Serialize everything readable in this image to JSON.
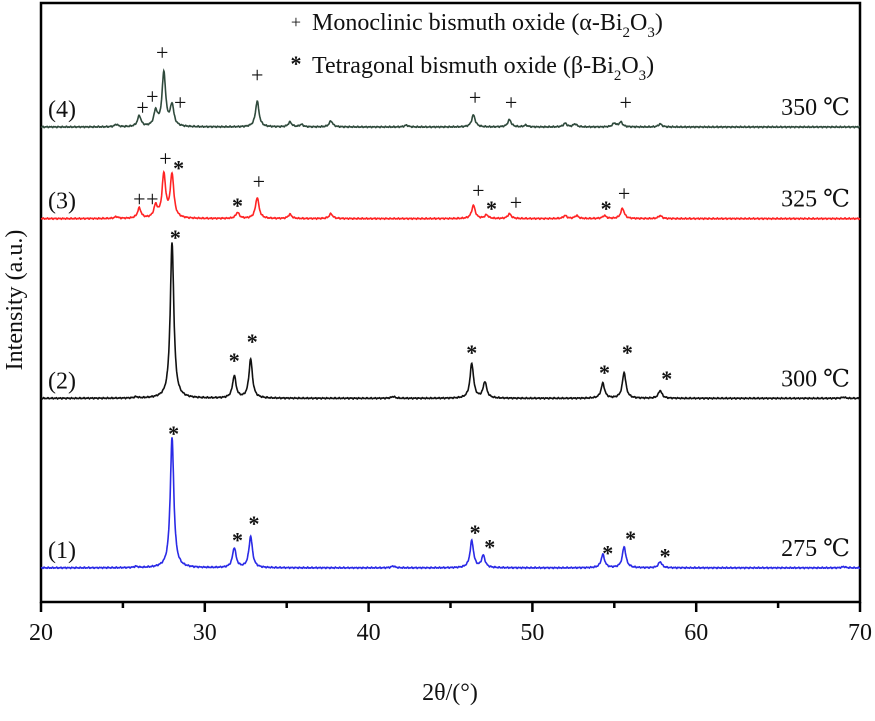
{
  "chart_data": {
    "type": "line",
    "title": "",
    "xlabel": "2θ/(°)",
    "ylabel": "Intensity (a.u.)",
    "xlim": [
      20,
      70
    ],
    "ylim": [
      0,
      100
    ],
    "xticks": [
      20,
      30,
      40,
      50,
      60,
      70
    ],
    "grid": false,
    "legend": {
      "placement": "top-center",
      "entries": [
        {
          "symbol": "+",
          "text": "Monoclinic bismuth oxide (α-Bi",
          "sub1": "2",
          "mid": "O",
          "sub2": "3",
          "end": ")"
        },
        {
          "symbol": "*",
          "text": "Tetragonal bismuth oxide (β-Bi",
          "sub1": "2",
          "mid": "O",
          "sub2": "3",
          "end": ")"
        }
      ]
    },
    "series": [
      {
        "name": "(1)",
        "temperature": "275 ℃",
        "color": "#2a2ae6",
        "baseline": 5.7,
        "peaks": [
          [
            25.8,
            0.2
          ],
          [
            28.0,
            21.7
          ],
          [
            31.8,
            3.3
          ],
          [
            32.8,
            5.2
          ],
          [
            41.5,
            0.3
          ],
          [
            46.3,
            4.5
          ],
          [
            47.0,
            2.0
          ],
          [
            54.3,
            2.2
          ],
          [
            55.6,
            3.5
          ],
          [
            57.8,
            1.0
          ],
          [
            69.0,
            0.2
          ]
        ],
        "markers": [
          [
            28.1,
            28.7,
            "*"
          ],
          [
            32.0,
            10.9,
            "*"
          ],
          [
            33.0,
            13.7,
            "*"
          ],
          [
            46.5,
            12.2,
            "*"
          ],
          [
            47.4,
            9.8,
            "*"
          ],
          [
            54.6,
            8.8,
            "*"
          ],
          [
            56.0,
            11.2,
            "*"
          ],
          [
            58.1,
            8.3,
            "*"
          ]
        ]
      },
      {
        "name": "(2)",
        "temperature": "300 ℃",
        "color": "#111111",
        "baseline": 34.0,
        "peaks": [
          [
            25.8,
            0.2
          ],
          [
            28.0,
            26.0
          ],
          [
            31.8,
            3.7
          ],
          [
            32.8,
            6.5
          ],
          [
            41.5,
            0.3
          ],
          [
            46.3,
            5.8
          ],
          [
            47.1,
            2.7
          ],
          [
            54.3,
            2.5
          ],
          [
            55.6,
            4.3
          ],
          [
            57.8,
            1.3
          ],
          [
            69.0,
            0.2
          ]
        ],
        "markers": [
          [
            28.2,
            61.4,
            "*"
          ],
          [
            31.8,
            40.9,
            "*"
          ],
          [
            32.9,
            44.1,
            "*"
          ],
          [
            46.3,
            42.2,
            "*"
          ],
          [
            54.4,
            38.9,
            "*"
          ],
          [
            55.8,
            42.2,
            "*"
          ],
          [
            58.2,
            37.9,
            "*"
          ]
        ]
      },
      {
        "name": "(3)",
        "temperature": "325 ℃",
        "color": "#ff2424",
        "baseline": 64.0,
        "peaks": [
          [
            24.6,
            0.3
          ],
          [
            26.0,
            1.7
          ],
          [
            27.0,
            2.0
          ],
          [
            27.5,
            7.2
          ],
          [
            28.0,
            7.2
          ],
          [
            32.0,
            1.0
          ],
          [
            33.2,
            3.5
          ],
          [
            35.2,
            0.7
          ],
          [
            37.7,
            0.8
          ],
          [
            46.4,
            2.2
          ],
          [
            47.2,
            0.6
          ],
          [
            48.6,
            0.8
          ],
          [
            52.0,
            0.5
          ],
          [
            52.7,
            0.5
          ],
          [
            54.4,
            0.5
          ],
          [
            55.5,
            1.7
          ],
          [
            57.8,
            0.5
          ]
        ],
        "markers": [
          [
            27.6,
            74.1,
            "+"
          ],
          [
            28.4,
            73.0,
            "*"
          ],
          [
            26.0,
            67.4,
            "+"
          ],
          [
            26.8,
            67.4,
            "+"
          ],
          [
            32.0,
            66.8,
            "*"
          ],
          [
            33.3,
            70.3,
            "+"
          ],
          [
            46.7,
            68.8,
            "+"
          ],
          [
            47.5,
            66.3,
            "*"
          ],
          [
            49.0,
            66.8,
            "+"
          ],
          [
            54.5,
            66.3,
            "*"
          ],
          [
            55.6,
            68.3,
            "+"
          ]
        ]
      },
      {
        "name": "(4)",
        "temperature": "350 ℃",
        "color": "#2f4a3c",
        "baseline": 79.3,
        "peaks": [
          [
            24.6,
            0.4
          ],
          [
            26.0,
            1.8
          ],
          [
            27.0,
            2.5
          ],
          [
            27.5,
            9.0
          ],
          [
            28.0,
            3.5
          ],
          [
            33.2,
            4.3
          ],
          [
            35.2,
            0.8
          ],
          [
            35.9,
            0.4
          ],
          [
            37.7,
            1.0
          ],
          [
            42.3,
            0.3
          ],
          [
            46.4,
            2.0
          ],
          [
            48.6,
            1.2
          ],
          [
            49.6,
            0.3
          ],
          [
            52.0,
            0.6
          ],
          [
            52.6,
            0.5
          ],
          [
            55.0,
            0.6
          ],
          [
            55.4,
            0.8
          ],
          [
            57.8,
            0.5
          ]
        ],
        "markers": [
          [
            27.4,
            91.8,
            "+"
          ],
          [
            26.2,
            82.6,
            "+"
          ],
          [
            26.8,
            84.5,
            "+"
          ],
          [
            28.5,
            83.5,
            "+"
          ],
          [
            33.2,
            88.1,
            "+"
          ],
          [
            46.5,
            84.3,
            "+"
          ],
          [
            48.7,
            83.5,
            "+"
          ],
          [
            55.7,
            83.5,
            "+"
          ]
        ]
      }
    ]
  }
}
